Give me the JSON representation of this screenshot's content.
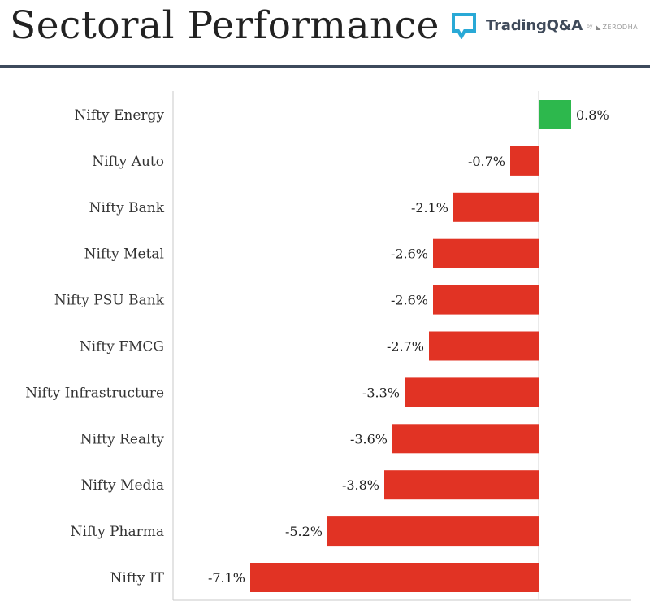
{
  "header": {
    "title": "Sectoral Performance",
    "brand_name": "TradingQ&A",
    "brand_by": "by",
    "brand_company": "ZERODHA"
  },
  "colors": {
    "positive": "#2db84d",
    "negative": "#e13324",
    "header_rule": "#3d4a5c",
    "brand_accent": "#29a9d6"
  },
  "chart_data": {
    "type": "bar",
    "orientation": "horizontal",
    "categories": [
      "Nifty Energy",
      "Nifty Auto",
      "Nifty Bank",
      "Nifty Metal",
      "Nifty PSU Bank",
      "Nifty FMCG",
      "Nifty Infrastructure",
      "Nifty Realty",
      "Nifty Media",
      "Nifty Pharma",
      "Nifty IT"
    ],
    "values": [
      0.8,
      -0.7,
      -2.1,
      -2.6,
      -2.6,
      -2.7,
      -3.3,
      -3.6,
      -3.8,
      -5.2,
      -7.1
    ],
    "value_labels": [
      "0.8%",
      "-0.7%",
      "-2.1%",
      "-2.6%",
      "-2.6%",
      "-2.7%",
      "-3.3%",
      "-3.6%",
      "-3.8%",
      "-5.2%",
      "-7.1%"
    ],
    "unit": "%",
    "xlim": [
      -9.0,
      1.8
    ],
    "grid": false,
    "legend": "none"
  }
}
